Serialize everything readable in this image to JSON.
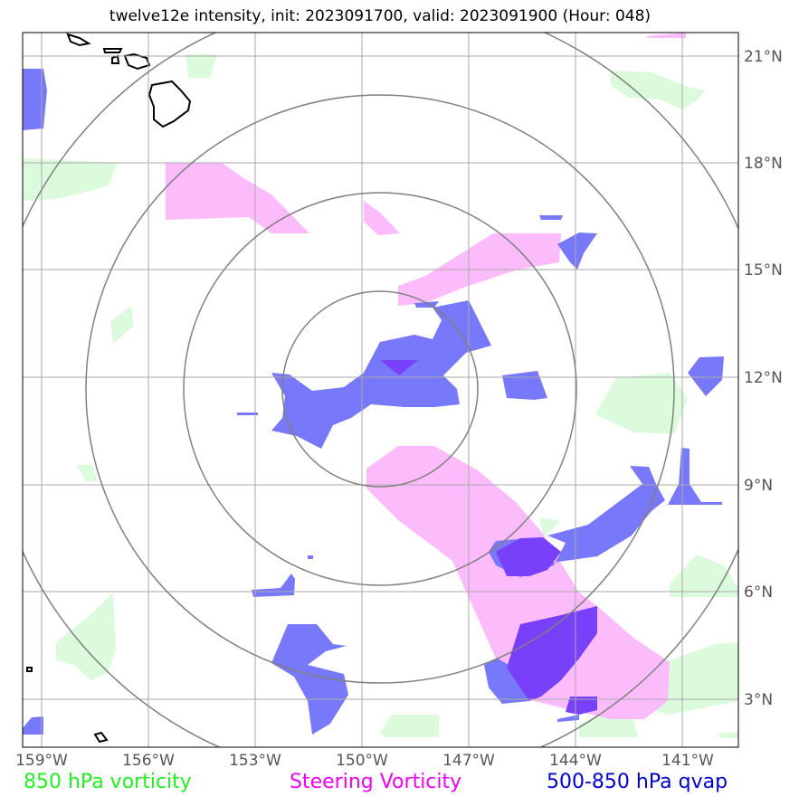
{
  "title": "twelve12e intensity, init: 2023091700, valid: 2023091900 (Hour: 048)",
  "lon_ticks": [
    "159°W",
    "156°W",
    "153°W",
    "150°W",
    "147°W",
    "144°W",
    "141°W"
  ],
  "lat_ticks": [
    "21°N",
    "18°N",
    "15°N",
    "12°N",
    "9°N",
    "6°N",
    "3°N"
  ],
  "legend": {
    "vorticity850": {
      "label": "850 hPa vorticity",
      "color": "#22ee22"
    },
    "steering": {
      "label": "Steering Vorticity",
      "color": "#ee00ee"
    },
    "qvap": {
      "label": "500-850 hPa qvap",
      "color": "#0000cc"
    }
  },
  "colors": {
    "vorticity850_fill": "#dcfadc",
    "steering_fill": "#fcbcfc",
    "qvap_fill": "#7878fa",
    "qvap_strong_fill": "#7840f8",
    "grid": "#aaaaaa",
    "range_rings": "#808080",
    "coastline": "#000000"
  },
  "range_rings_count": 4
}
